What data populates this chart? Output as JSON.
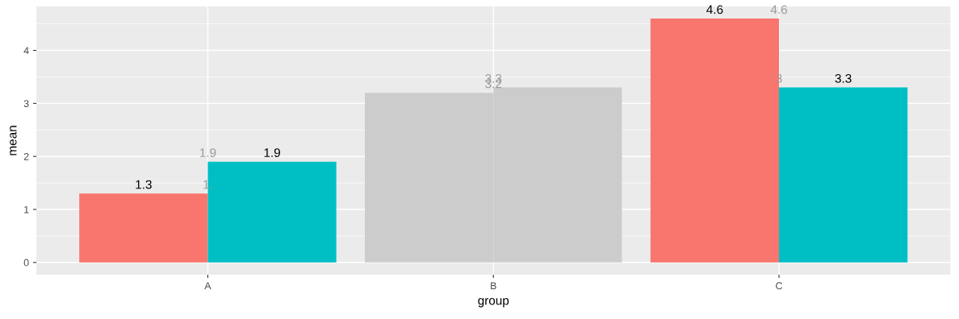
{
  "chart_data": {
    "type": "bar",
    "xlabel": "group",
    "ylabel": "mean",
    "categories": [
      "A",
      "B",
      "C"
    ],
    "series": [
      {
        "values": [
          1.3,
          3.2,
          4.6
        ],
        "colors": [
          "#f8766d",
          "#cccccc",
          "#f8766d"
        ],
        "value_labels": [
          "1.3",
          null,
          "4.6"
        ]
      },
      {
        "values": [
          1.9,
          3.3,
          3.3
        ],
        "colors": [
          "#00bfc4",
          "#cccccc",
          "#00bfc4"
        ],
        "value_labels": [
          "1.9",
          null,
          "3.3"
        ]
      }
    ],
    "annotations": [
      {
        "text": "1.",
        "x": "A",
        "y": 1.3
      },
      {
        "text": "1.9",
        "x": "A",
        "y": 1.9
      },
      {
        "text": "3.2",
        "x": "B",
        "y": 3.2
      },
      {
        "text": "3.3",
        "x": "B",
        "y": 3.3
      },
      {
        "text": "4.6",
        "x": "C",
        "y": 4.6
      },
      {
        "text": "3",
        "x": "C",
        "y": 3.3
      }
    ],
    "ylim": [
      -0.23,
      4.83
    ],
    "yticks": [
      0,
      1,
      2,
      3,
      4
    ],
    "grid": true,
    "legend": false
  }
}
